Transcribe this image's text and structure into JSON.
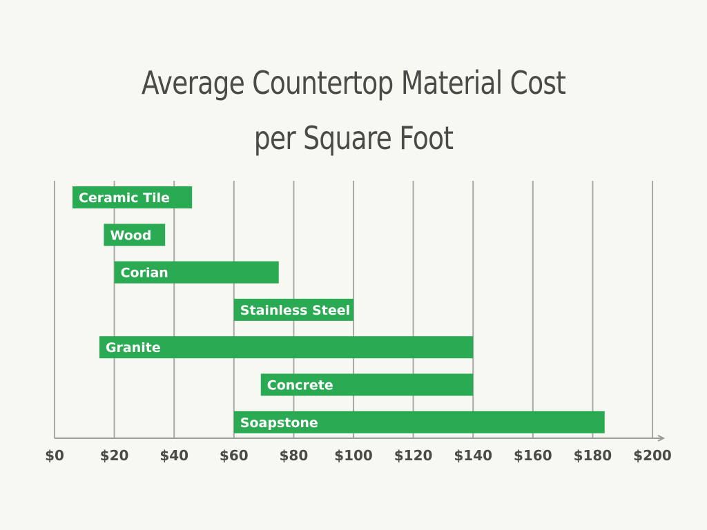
{
  "chart_data": {
    "type": "bar",
    "orientation": "horizontal-range",
    "title": "Average Countertop Material Cost per Square Foot",
    "title_lines": [
      "Average Countertop Material Cost",
      "per Square Foot"
    ],
    "categories": [
      "Ceramic Tile",
      "Wood",
      "Corian",
      "Stainless Steel",
      "Granite",
      "Concrete",
      "Soapstone"
    ],
    "ranges": [
      {
        "low": 6,
        "high": 46
      },
      {
        "low": 16.5,
        "high": 37
      },
      {
        "low": 20,
        "high": 75
      },
      {
        "low": 60,
        "high": 100
      },
      {
        "low": 15,
        "high": 140
      },
      {
        "low": 69,
        "high": 140
      },
      {
        "low": 60,
        "high": 184
      }
    ],
    "xlim": [
      0,
      200
    ],
    "xticks": [
      0,
      20,
      40,
      60,
      80,
      100,
      120,
      140,
      160,
      180,
      200
    ],
    "xtick_labels": [
      "$0",
      "$20",
      "$40",
      "$60",
      "$80",
      "$100",
      "$120",
      "$140",
      "$160",
      "$180",
      "$200"
    ],
    "grid": "vertical",
    "xlabel": "",
    "ylabel": "",
    "colors": {
      "bar": "#2aaa52",
      "bar_text": "#ffffff",
      "grid": "#a9a9a5",
      "axis": "#9a9a96",
      "text": "#4a4a48",
      "background": "#f7f8f2"
    }
  }
}
